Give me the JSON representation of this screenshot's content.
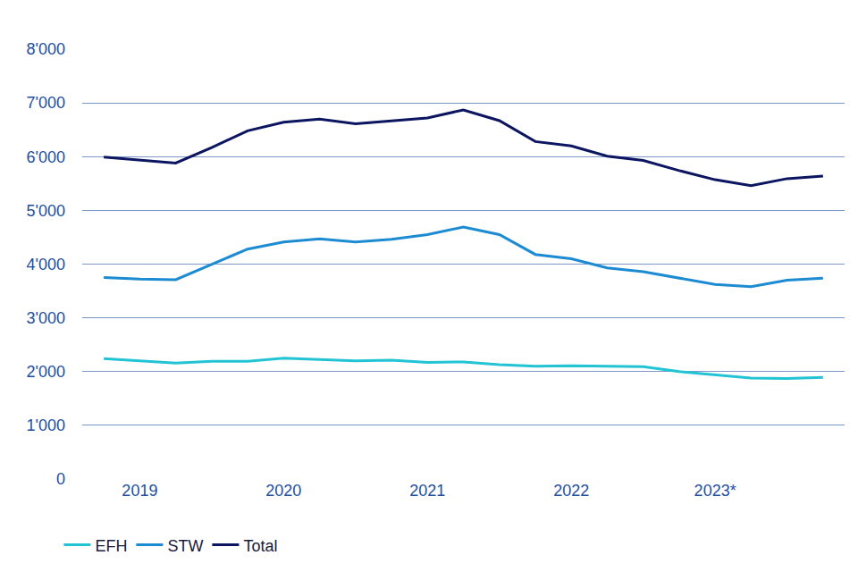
{
  "chart_data": {
    "type": "line",
    "categories": [
      null,
      "2019",
      null,
      null,
      null,
      "2020",
      null,
      null,
      null,
      "2021",
      null,
      null,
      null,
      "2022",
      null,
      null,
      null,
      "2023*",
      null,
      null,
      null
    ],
    "series": [
      {
        "name": "EFH",
        "color": "#22c3d3",
        "values": [
          2240,
          2200,
          2160,
          2190,
          2190,
          2250,
          2220,
          2200,
          2210,
          2170,
          2180,
          2130,
          2100,
          2110,
          2100,
          2090,
          2000,
          1940,
          1880,
          1870,
          1890
        ]
      },
      {
        "name": "STW",
        "color": "#1c8bd2",
        "values": [
          3750,
          3720,
          3710,
          4000,
          4280,
          4410,
          4470,
          4410,
          4460,
          4550,
          4690,
          4550,
          4180,
          4100,
          3930,
          3860,
          3740,
          3620,
          3580,
          3700,
          3740
        ]
      },
      {
        "name": "Total",
        "color": "#0b1560",
        "values": [
          5990,
          5930,
          5880,
          6170,
          6480,
          6640,
          6700,
          6610,
          6670,
          6720,
          6870,
          6670,
          6280,
          6200,
          6010,
          5930,
          5740,
          5570,
          5460,
          5590,
          5640
        ]
      }
    ],
    "ylim": [
      0,
      8000
    ],
    "yticks": [
      0,
      {
        "value": 1000,
        "label": "1'000"
      },
      {
        "value": 2000,
        "label": "2'000"
      },
      {
        "value": 3000,
        "label": "3'000"
      },
      {
        "value": 4000,
        "label": "4'000"
      },
      {
        "value": 5000,
        "label": "5'000"
      },
      {
        "value": 6000,
        "label": "6'000"
      },
      {
        "value": 7000,
        "label": "7'000"
      },
      {
        "value": 8000,
        "label": "8'000"
      }
    ],
    "grid": true,
    "legend": "bottom left"
  }
}
